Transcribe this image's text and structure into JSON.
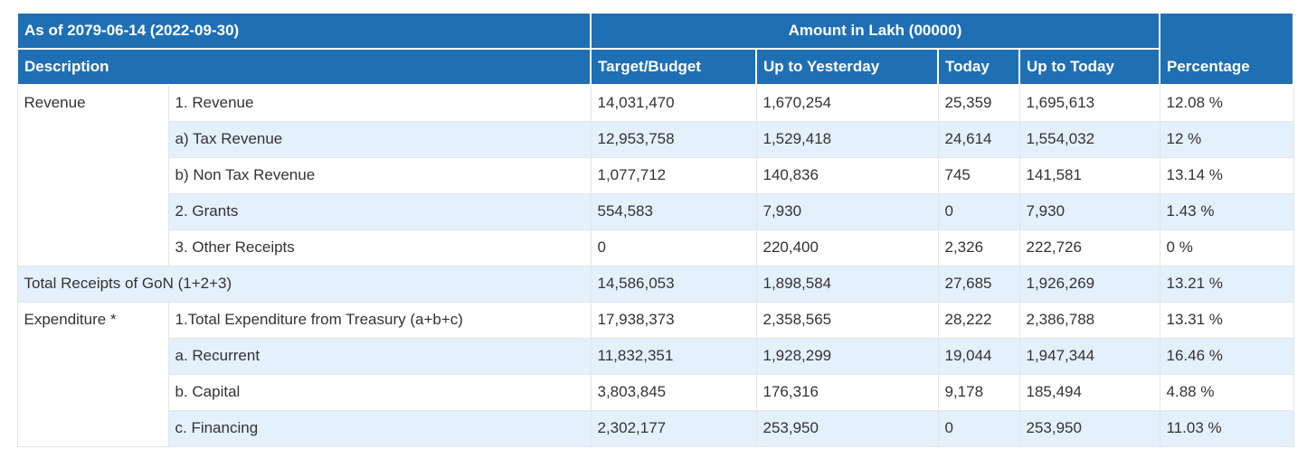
{
  "header": {
    "as_of": "As of 2079-06-14 (2022-09-30)",
    "amount_unit": "Amount in Lakh (00000)",
    "columns": {
      "description": "Description",
      "target": "Target/Budget",
      "up_to_yesterday": "Up to Yesterday",
      "today": "Today",
      "up_to_today": "Up to Today",
      "percentage": "Percentage"
    }
  },
  "revenue": {
    "group_label": "Revenue",
    "rows": [
      {
        "label": "1. Revenue",
        "target": "14,031,470",
        "up_to_yesterday": "1,670,254",
        "today": "25,359",
        "up_to_today": "1,695,613",
        "percentage": "12.08 %"
      },
      {
        "label": "a) Tax Revenue",
        "target": "12,953,758",
        "up_to_yesterday": "1,529,418",
        "today": "24,614",
        "up_to_today": "1,554,032",
        "percentage": "12 %"
      },
      {
        "label": "b) Non Tax Revenue",
        "target": "1,077,712",
        "up_to_yesterday": "140,836",
        "today": "745",
        "up_to_today": "141,581",
        "percentage": "13.14 %"
      },
      {
        "label": "2. Grants",
        "target": "554,583",
        "up_to_yesterday": "7,930",
        "today": "0",
        "up_to_today": "7,930",
        "percentage": "1.43 %"
      },
      {
        "label": "3. Other Receipts",
        "target": "0",
        "up_to_yesterday": "220,400",
        "today": "2,326",
        "up_to_today": "222,726",
        "percentage": "0 %"
      }
    ]
  },
  "total_receipts": {
    "label": "Total Receipts of GoN (1+2+3)",
    "target": "14,586,053",
    "up_to_yesterday": "1,898,584",
    "today": "27,685",
    "up_to_today": "1,926,269",
    "percentage": "13.21 %"
  },
  "expenditure": {
    "group_label": "Expenditure *",
    "rows": [
      {
        "label": "1.Total Expenditure from Treasury (a+b+c)",
        "target": "17,938,373",
        "up_to_yesterday": "2,358,565",
        "today": "28,222",
        "up_to_today": "2,386,788",
        "percentage": "13.31 %"
      },
      {
        "label": "a. Recurrent",
        "target": "11,832,351",
        "up_to_yesterday": "1,928,299",
        "today": "19,044",
        "up_to_today": "1,947,344",
        "percentage": "16.46 %"
      },
      {
        "label": "b. Capital",
        "target": "3,803,845",
        "up_to_yesterday": "176,316",
        "today": "9,178",
        "up_to_today": "185,494",
        "percentage": "4.88 %"
      },
      {
        "label": "c. Financing",
        "target": "2,302,177",
        "up_to_yesterday": "253,950",
        "today": "0",
        "up_to_today": "253,950",
        "percentage": "11.03 %"
      }
    ]
  }
}
